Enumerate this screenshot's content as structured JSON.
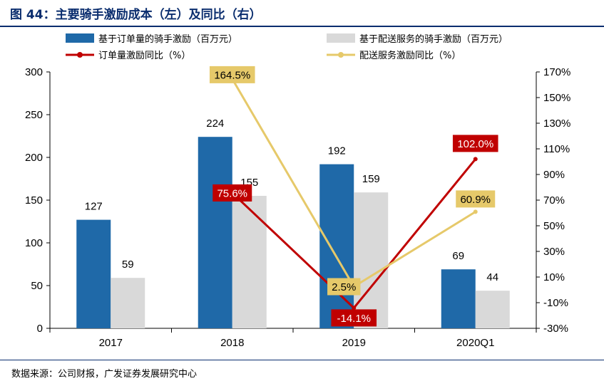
{
  "header": {
    "title": "图 44：主要骑手激励成本（左）及同比（右）"
  },
  "chart_data": {
    "type": "bar+line",
    "categories": [
      "2017",
      "2018",
      "2019",
      "2020Q1"
    ],
    "series": [
      {
        "name": "基于订单量的骑手激励（百万元）",
        "type": "bar",
        "axis": "left",
        "color": "#1f69a8",
        "values": [
          127,
          224,
          192,
          69
        ],
        "labels": [
          "127",
          "224",
          "192",
          "69"
        ]
      },
      {
        "name": "基于配送服务的骑手激励（百万元）",
        "type": "bar",
        "axis": "left",
        "color": "#d9d9d9",
        "values": [
          59,
          155,
          159,
          44
        ],
        "labels": [
          "59",
          "155",
          "159",
          "44"
        ]
      },
      {
        "name": "订单量激励同比（%）",
        "type": "line",
        "axis": "right",
        "color": "#c00000",
        "label_text_color": "#ffffff",
        "values": [
          null,
          75.6,
          -14.1,
          102.0
        ],
        "labels": [
          "",
          "75.6%",
          "-14.1%",
          "102.0%"
        ]
      },
      {
        "name": "配送服务激励同比（%）",
        "type": "line",
        "axis": "right",
        "color": "#e6c96a",
        "label_text_color": "#000000",
        "values": [
          null,
          164.5,
          2.5,
          60.9
        ],
        "labels": [
          "",
          "164.5%",
          "2.5%",
          "60.9%"
        ]
      }
    ],
    "y_left": {
      "min": 0,
      "max": 300,
      "ticks": [
        "0",
        "50",
        "100",
        "150",
        "200",
        "250",
        "300"
      ]
    },
    "y_right": {
      "min": -30,
      "max": 170,
      "ticks": [
        "-30%",
        "-10%",
        "10%",
        "30%",
        "50%",
        "70%",
        "90%",
        "110%",
        "130%",
        "150%",
        "170%"
      ]
    }
  },
  "footer": {
    "source": "数据来源：公司财报，广发证券发展研究中心"
  }
}
